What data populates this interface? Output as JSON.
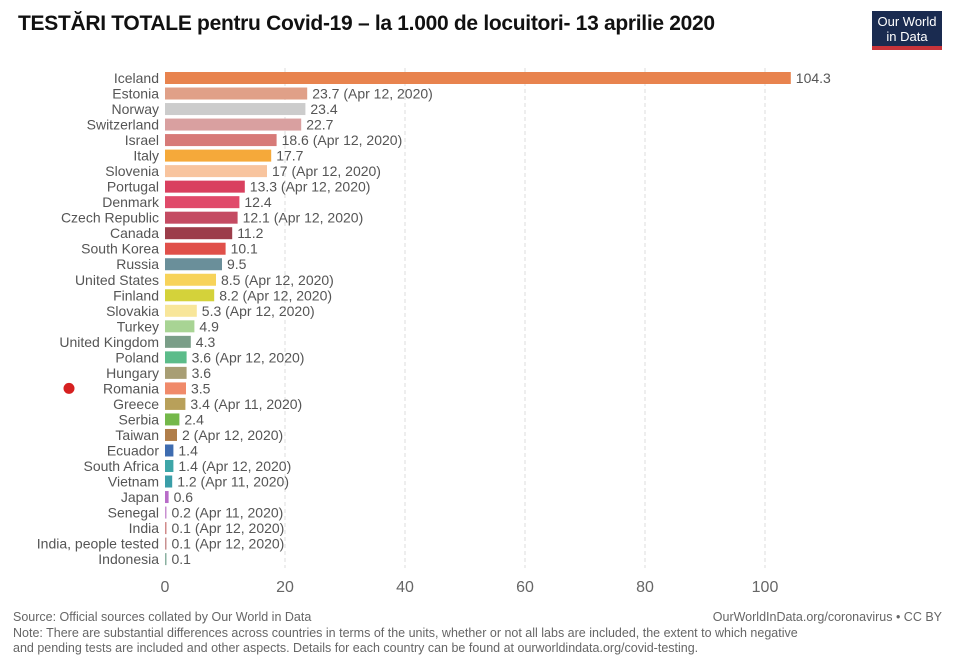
{
  "title": "TESTĂRI TOTALE pentru Covid-19 – la 1.000 de locuitori- 13 aprilie 2020",
  "logo": {
    "line1": "Our World",
    "line2": "in Data"
  },
  "highlight": {
    "country": "Romania",
    "color": "#d62020"
  },
  "chart_data": {
    "type": "bar",
    "orientation": "horizontal",
    "title": "TESTĂRI TOTALE pentru Covid-19 – la 1.000 de locuitori- 13 aprilie 2020",
    "xlabel": "",
    "ylabel": "",
    "xlim": [
      0,
      100
    ],
    "xticks": [
      0,
      20,
      40,
      60,
      80,
      100
    ],
    "grid": "vertical dashed",
    "categories": [
      "Iceland",
      "Estonia",
      "Norway",
      "Switzerland",
      "Israel",
      "Italy",
      "Slovenia",
      "Portugal",
      "Denmark",
      "Czech Republic",
      "Canada",
      "South Korea",
      "Russia",
      "United States",
      "Finland",
      "Slovakia",
      "Turkey",
      "United Kingdom",
      "Poland",
      "Hungary",
      "Romania",
      "Greece",
      "Serbia",
      "Taiwan",
      "Ecuador",
      "South Africa",
      "Vietnam",
      "Japan",
      "Senegal",
      "India",
      "India, people tested",
      "Indonesia"
    ],
    "values": [
      104.3,
      23.7,
      23.4,
      22.7,
      18.6,
      17.7,
      17,
      13.3,
      12.4,
      12.1,
      11.2,
      10.1,
      9.5,
      8.5,
      8.2,
      5.3,
      4.9,
      4.3,
      3.6,
      3.6,
      3.5,
      3.4,
      2.4,
      2,
      1.4,
      1.4,
      1.2,
      0.6,
      0.2,
      0.1,
      0.1,
      0.1
    ],
    "value_labels": [
      "104.3",
      "23.7 (Apr 12, 2020)",
      "23.4",
      "22.7",
      "18.6 (Apr 12, 2020)",
      "17.7",
      "17 (Apr 12, 2020)",
      "13.3 (Apr 12, 2020)",
      "12.4",
      "12.1 (Apr 12, 2020)",
      "11.2",
      "10.1",
      "9.5",
      "8.5 (Apr 12, 2020)",
      "8.2 (Apr 12, 2020)",
      "5.3 (Apr 12, 2020)",
      "4.9",
      "4.3",
      "3.6 (Apr 12, 2020)",
      "3.6",
      "3.5",
      "3.4 (Apr 11, 2020)",
      "2.4",
      "2 (Apr 12, 2020)",
      "1.4",
      "1.4 (Apr 12, 2020)",
      "1.2 (Apr 11, 2020)",
      "0.6",
      "0.2 (Apr 11, 2020)",
      "0.1 (Apr 12, 2020)",
      "0.1 (Apr 12, 2020)",
      "0.1"
    ],
    "colors": [
      "#e8834e",
      "#e0a088",
      "#cccccc",
      "#d9a0a0",
      "#d77a78",
      "#f5a93a",
      "#f8c49e",
      "#d9405f",
      "#e04a6a",
      "#c44b62",
      "#9c3d4a",
      "#e0504a",
      "#6a8f9a",
      "#f7d35a",
      "#d4d23a",
      "#f8e69a",
      "#a8d494",
      "#7a9e88",
      "#5cbc8a",
      "#a89e74",
      "#f08a6a",
      "#b8a05a",
      "#74b84a",
      "#b07e4a",
      "#3e6cb0",
      "#3ea6a8",
      "#3a9ea8",
      "#b86cc8",
      "#c890d0",
      "#d08a8a",
      "#c89090",
      "#8ab0a0"
    ]
  },
  "footer": {
    "source": "Source: Official sources collated by Our World in Data",
    "credit": "OurWorldInData.org/coronavirus • CC BY",
    "note1": "Note: There are substantial differences across countries in terms of the units, whether or not all labs are included, the extent to which negative",
    "note2": "and pending tests are included and other aspects. Details for each country can be found at ourworldindata.org/covid-testing."
  }
}
